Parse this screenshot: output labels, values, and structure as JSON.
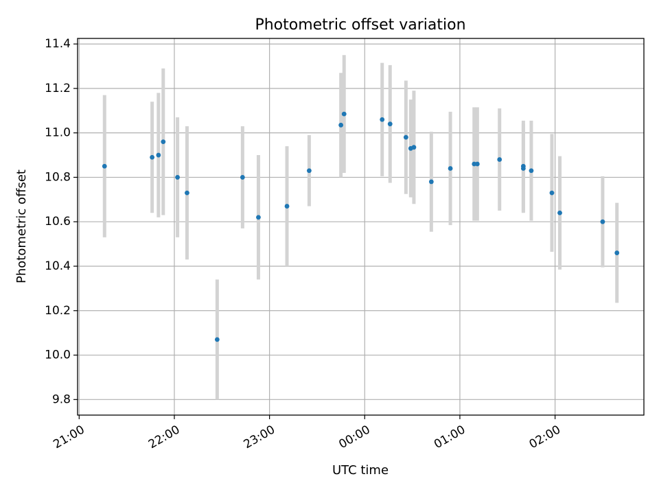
{
  "chart_data": {
    "type": "scatter",
    "title": "Photometric offset variation",
    "xlabel": "UTC time",
    "ylabel": "Photometric offset",
    "x_unit": "UTC",
    "xlim": [
      "20:59",
      "02:56"
    ],
    "ylim": [
      9.73,
      11.425
    ],
    "grid": true,
    "xticks": [
      "21:00",
      "22:00",
      "23:00",
      "00:00",
      "01:00",
      "02:00"
    ],
    "yticks": [
      9.8,
      10.0,
      10.2,
      10.4,
      10.6,
      10.8,
      11.0,
      11.2,
      11.4
    ],
    "colors": {
      "point": "#1f77b4",
      "errorbar": "#d3d3d3",
      "grid": "#b0b0b0"
    },
    "points": [
      {
        "x": "21:16",
        "y": 10.85,
        "err": 0.32
      },
      {
        "x": "21:46",
        "y": 10.89,
        "err": 0.25
      },
      {
        "x": "21:50",
        "y": 10.9,
        "err": 0.28
      },
      {
        "x": "21:53",
        "y": 10.96,
        "err": 0.33
      },
      {
        "x": "22:02",
        "y": 10.8,
        "err": 0.27
      },
      {
        "x": "22:08",
        "y": 10.73,
        "err": 0.3
      },
      {
        "x": "22:27",
        "y": 10.07,
        "err": 0.27
      },
      {
        "x": "22:43",
        "y": 10.8,
        "err": 0.23
      },
      {
        "x": "22:53",
        "y": 10.62,
        "err": 0.28
      },
      {
        "x": "23:11",
        "y": 10.67,
        "err": 0.27
      },
      {
        "x": "23:25",
        "y": 10.83,
        "err": 0.16
      },
      {
        "x": "23:45",
        "y": 11.035,
        "err": 0.235
      },
      {
        "x": "23:47",
        "y": 11.085,
        "err": 0.265
      },
      {
        "x": "00:11",
        "y": 11.06,
        "err": 0.255
      },
      {
        "x": "00:16",
        "y": 11.04,
        "err": 0.265
      },
      {
        "x": "00:26",
        "y": 10.98,
        "err": 0.255
      },
      {
        "x": "00:29",
        "y": 10.93,
        "err": 0.22
      },
      {
        "x": "00:31",
        "y": 10.935,
        "err": 0.255
      },
      {
        "x": "00:42",
        "y": 10.78,
        "err": 0.225
      },
      {
        "x": "00:54",
        "y": 10.84,
        "err": 0.255
      },
      {
        "x": "01:09",
        "y": 10.86,
        "err": 0.255
      },
      {
        "x": "01:11",
        "y": 10.86,
        "err": 0.255
      },
      {
        "x": "01:25",
        "y": 10.88,
        "err": 0.23
      },
      {
        "x": "01:40",
        "y": 10.85,
        "err": 0.205
      },
      {
        "x": "01:40",
        "y": 10.84,
        "err": 0.2
      },
      {
        "x": "01:45",
        "y": 10.83,
        "err": 0.225
      },
      {
        "x": "01:58",
        "y": 10.73,
        "err": 0.265
      },
      {
        "x": "02:03",
        "y": 10.64,
        "err": 0.255
      },
      {
        "x": "02:30",
        "y": 10.6,
        "err": 0.205
      },
      {
        "x": "02:39",
        "y": 10.46,
        "err": 0.225
      }
    ]
  }
}
